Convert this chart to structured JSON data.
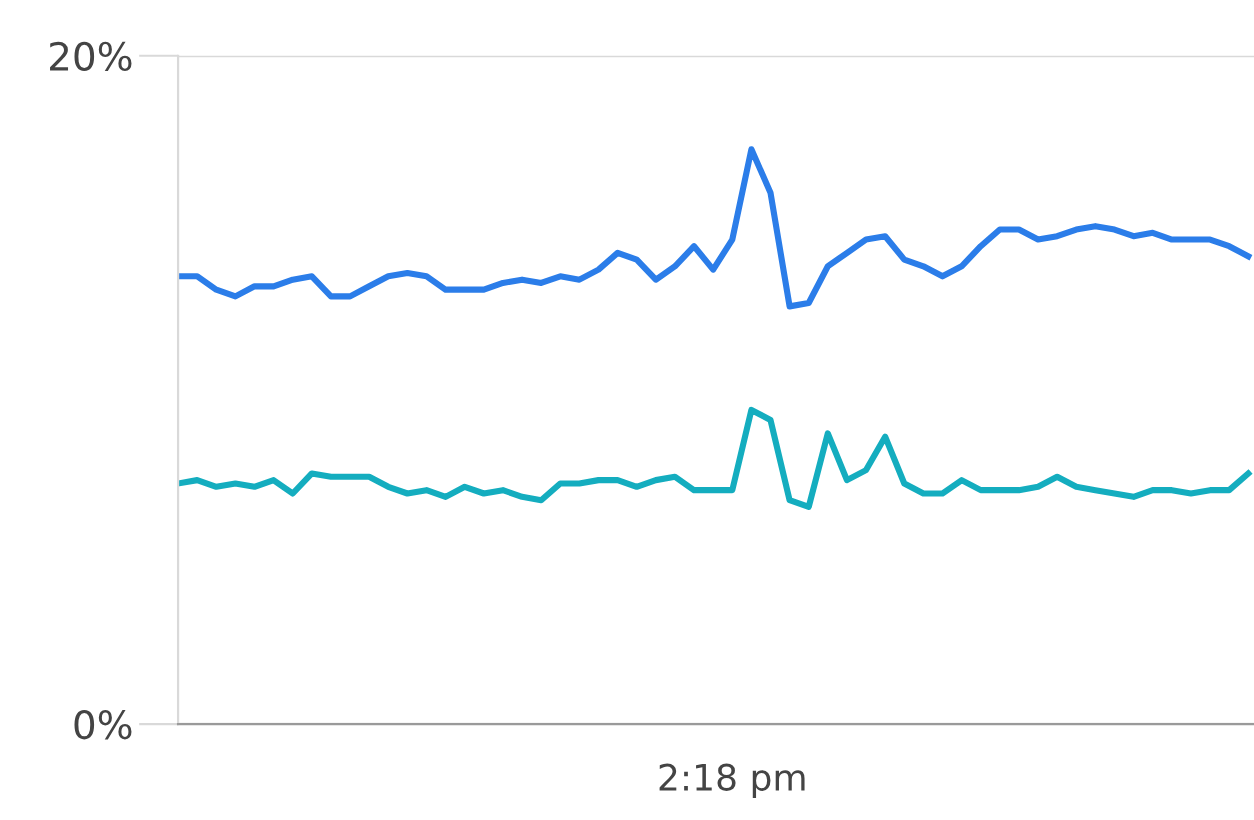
{
  "chart_data": {
    "type": "line",
    "categories": [
      null,
      null,
      null,
      null,
      null,
      null,
      null,
      null,
      null,
      null,
      null,
      null,
      null,
      null,
      null,
      null,
      null,
      null,
      null,
      null,
      null,
      null,
      null,
      null,
      null,
      null,
      null,
      null,
      null,
      "2:18 pm",
      null,
      null,
      null,
      null,
      null,
      null,
      null,
      null,
      null,
      null,
      null,
      null,
      null,
      null,
      null,
      null,
      null,
      null,
      null,
      null,
      null,
      null,
      null,
      null,
      null,
      null,
      null
    ],
    "series": [
      {
        "color": "#2b7de9",
        "values": [
          13.4,
          13.4,
          13.0,
          12.8,
          13.1,
          13.1,
          13.3,
          13.4,
          12.8,
          12.8,
          13.1,
          13.4,
          13.5,
          13.4,
          13.0,
          13.0,
          13.0,
          13.2,
          13.3,
          13.2,
          13.4,
          13.3,
          13.6,
          14.1,
          13.9,
          13.3,
          13.7,
          14.3,
          13.6,
          14.5,
          17.2,
          15.9,
          12.5,
          12.6,
          13.7,
          14.1,
          14.5,
          14.6,
          13.9,
          13.7,
          13.4,
          13.7,
          14.3,
          14.8,
          14.8,
          14.5,
          14.6,
          14.8,
          14.9,
          14.8,
          14.6,
          14.7,
          14.5,
          14.5,
          14.5,
          14.3,
          14.0
        ]
      },
      {
        "color": "#14adbf",
        "values": [
          7.2,
          7.3,
          7.1,
          7.2,
          7.1,
          7.3,
          6.9,
          7.5,
          7.4,
          7.4,
          7.4,
          7.1,
          6.9,
          7.0,
          6.8,
          7.1,
          6.9,
          7.0,
          6.8,
          6.7,
          7.2,
          7.2,
          7.3,
          7.3,
          7.1,
          7.3,
          7.4,
          7.0,
          7.0,
          7.0,
          9.4,
          9.1,
          6.7,
          6.5,
          8.7,
          7.3,
          7.6,
          8.6,
          7.2,
          6.9,
          6.9,
          7.3,
          7.0,
          7.0,
          7.0,
          7.1,
          7.4,
          7.1,
          7.0,
          6.9,
          6.8,
          7.0,
          7.0,
          6.9,
          7.0,
          7.0,
          7.5
        ]
      }
    ],
    "ylim": [
      0,
      20
    ],
    "yticks": [
      {
        "value": 0,
        "label": "0%"
      },
      {
        "value": 20,
        "label": "20%"
      }
    ],
    "grid": "y",
    "marker": "none",
    "line_style": "solid"
  }
}
